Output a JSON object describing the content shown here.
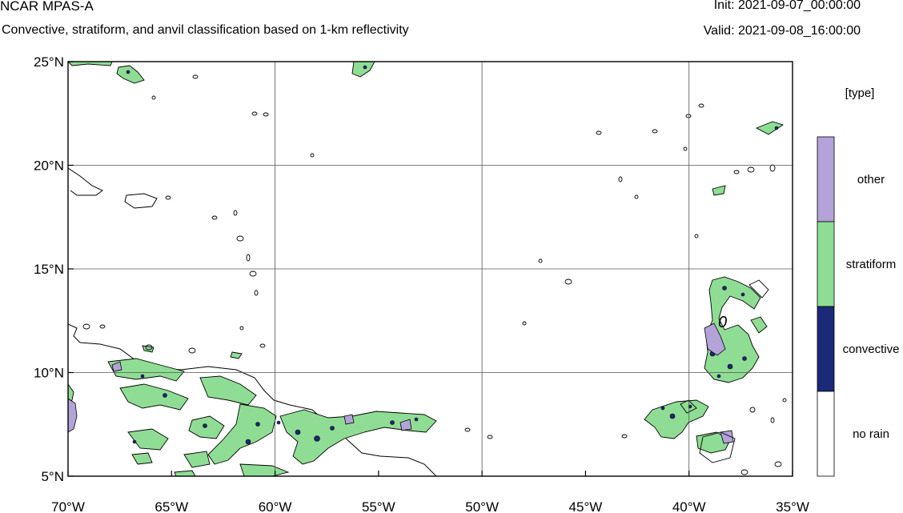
{
  "header": {
    "title": "NCAR MPAS-A",
    "subtitle": "Convective, stratiform, and anvil classification based on 1-km reflectivity",
    "init": "Init: 2021-09-07_00:00:00",
    "valid": "Valid: 2021-09-08_16:00:00"
  },
  "map": {
    "lon_range": [
      -70,
      -35
    ],
    "lat_range": [
      5,
      25
    ],
    "lon_ticks": [
      {
        "value": -70,
        "label": "70°W"
      },
      {
        "value": -65,
        "label": "65°W"
      },
      {
        "value": -60,
        "label": "60°W"
      },
      {
        "value": -55,
        "label": "55°W"
      },
      {
        "value": -50,
        "label": "50°W"
      },
      {
        "value": -45,
        "label": "45°W"
      },
      {
        "value": -40,
        "label": "40°W"
      },
      {
        "value": -35,
        "label": "35°W"
      }
    ],
    "lat_ticks": [
      {
        "value": 25,
        "label": "25°N"
      },
      {
        "value": 20,
        "label": "20°N"
      },
      {
        "value": 15,
        "label": "15°N"
      },
      {
        "value": 10,
        "label": "10°N"
      },
      {
        "value": 5,
        "label": "5°N"
      }
    ],
    "grid": true,
    "contour_label": "0"
  },
  "legend": {
    "title": "[type]",
    "items": [
      {
        "label": "other",
        "color": "#b3a3d8"
      },
      {
        "label": "stratiform",
        "color": "#8fdd94"
      },
      {
        "label": "convective",
        "color": "#1a2978"
      },
      {
        "label": "no rain",
        "color": "#ffffff"
      }
    ]
  }
}
